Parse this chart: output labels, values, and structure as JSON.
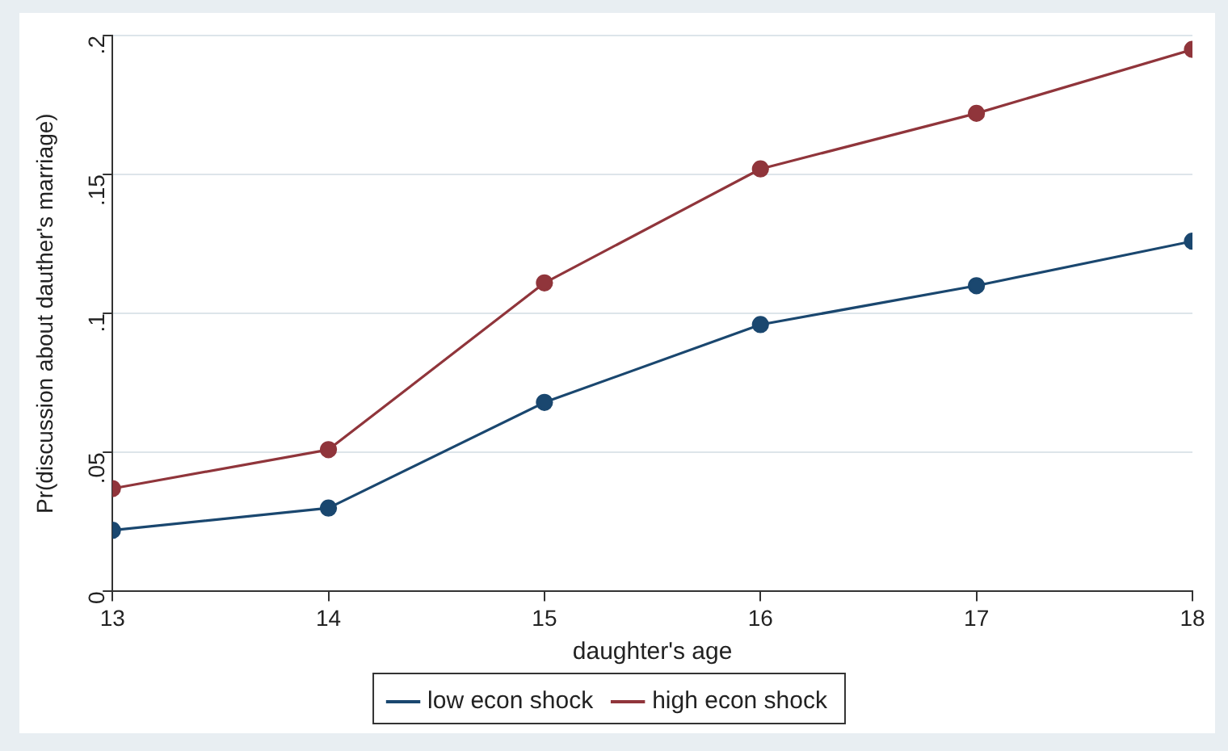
{
  "chart_data": {
    "type": "line",
    "xlabel": "daughter's age",
    "ylabel": "Pr(discussion about dauther's marriage)",
    "x": [
      13,
      14,
      15,
      16,
      17,
      18
    ],
    "xlim": [
      13,
      18
    ],
    "xticks": [
      13,
      14,
      15,
      16,
      17,
      18
    ],
    "ylim": [
      0,
      0.2
    ],
    "yticks": [
      {
        "value": 0,
        "label": "0"
      },
      {
        "value": 0.05,
        "label": ".05"
      },
      {
        "value": 0.1,
        "label": ".1"
      },
      {
        "value": 0.15,
        "label": ".15"
      },
      {
        "value": 0.2,
        "label": ".2"
      }
    ],
    "grid": "y",
    "legend": "bottom",
    "marker": "circle",
    "line_style": "solid",
    "series": [
      {
        "name": "low econ shock",
        "color": "#1a476f",
        "values": [
          0.022,
          0.03,
          0.068,
          0.096,
          0.11,
          0.126
        ]
      },
      {
        "name": "high econ shock",
        "color": "#90353b",
        "values": [
          0.037,
          0.051,
          0.111,
          0.152,
          0.172,
          0.195
        ]
      }
    ]
  }
}
